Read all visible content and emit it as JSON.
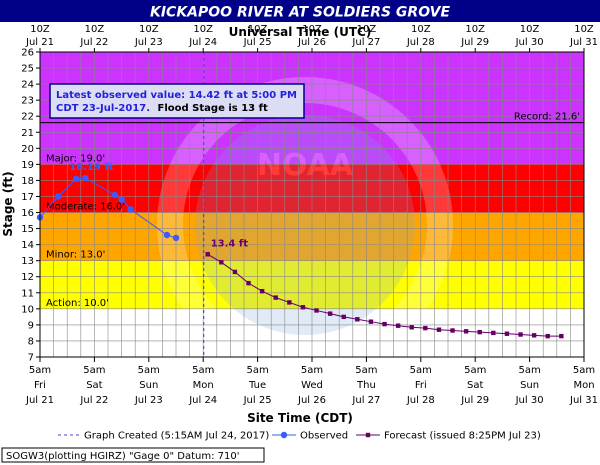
{
  "chart_data": {
    "type": "line",
    "title": "KICKAPOO RIVER AT SOLDIERS GROVE",
    "top_axis_label": "Universal Time (UTC)",
    "xlabel": "Site Time (CDT)",
    "ylabel": "Stage (ft)",
    "ylim": [
      7,
      26
    ],
    "y_ticks": [
      7,
      8,
      9,
      10,
      11,
      12,
      13,
      14,
      15,
      16,
      17,
      18,
      19,
      20,
      21,
      22,
      23,
      24,
      25,
      26
    ],
    "x_range_days": [
      "Jul 21 5am CDT",
      "Jul 31 5am CDT"
    ],
    "bottom_ticks": [
      {
        "l1": "5am",
        "l2": "Fri",
        "l3": "Jul 21"
      },
      {
        "l1": "5am",
        "l2": "Sat",
        "l3": "Jul 22"
      },
      {
        "l1": "5am",
        "l2": "Sun",
        "l3": "Jul 23"
      },
      {
        "l1": "5am",
        "l2": "Mon",
        "l3": "Jul 24"
      },
      {
        "l1": "5am",
        "l2": "Tue",
        "l3": "Jul 25"
      },
      {
        "l1": "5am",
        "l2": "Wed",
        "l3": "Jul 26"
      },
      {
        "l1": "5am",
        "l2": "Thu",
        "l3": "Jul 27"
      },
      {
        "l1": "5am",
        "l2": "Fri",
        "l3": "Jul 28"
      },
      {
        "l1": "5am",
        "l2": "Sat",
        "l3": "Jul 29"
      },
      {
        "l1": "5am",
        "l2": "Sun",
        "l3": "Jul 30"
      },
      {
        "l1": "5am",
        "l2": "Mon",
        "l3": "Jul 31"
      }
    ],
    "top_ticks": [
      {
        "l1": "10Z",
        "l2": "Jul 21"
      },
      {
        "l1": "10Z",
        "l2": "Jul 22"
      },
      {
        "l1": "10Z",
        "l2": "Jul 23"
      },
      {
        "l1": "10Z",
        "l2": "Jul 24"
      },
      {
        "l1": "10Z",
        "l2": "Jul 25"
      },
      {
        "l1": "10Z",
        "l2": "Jul 26"
      },
      {
        "l1": "10Z",
        "l2": "Jul 27"
      },
      {
        "l1": "10Z",
        "l2": "Jul 28"
      },
      {
        "l1": "10Z",
        "l2": "Jul 29"
      },
      {
        "l1": "10Z",
        "l2": "Jul 30"
      },
      {
        "l1": "10Z",
        "l2": "Jul 31"
      }
    ],
    "flood_bands": [
      {
        "label": "Action: 10.0'",
        "from": 10,
        "to": 13,
        "color": "#ffff00"
      },
      {
        "label": "Minor: 13.0'",
        "from": 13,
        "to": 16,
        "color": "#ffa500"
      },
      {
        "label": "Moderate: 16.0'",
        "from": 16,
        "to": 19,
        "color": "#ff0000"
      },
      {
        "label": "Major: 19.0'",
        "from": 19,
        "to": 26,
        "color": "#cc33ff"
      }
    ],
    "record": {
      "label": "Record: 21.6'",
      "value": 21.6
    },
    "graph_created_x": "Jul 24 5:15am CDT",
    "series": [
      {
        "name": "Observed",
        "color": "#3a5cff",
        "x": [
          "Jul 21 5am",
          "Jul 21 1pm",
          "Jul 21 9pm",
          "Jul 22 1am",
          "Jul 22 2pm",
          "Jul 22 5pm",
          "Jul 22 9pm",
          "Jul 23 1pm",
          "Jul 23 5pm"
        ],
        "y": [
          15.7,
          17.0,
          18.1,
          18.15,
          17.1,
          16.8,
          16.2,
          14.6,
          14.42
        ]
      },
      {
        "name": "Forecast (issued 8:25PM Jul 23)",
        "color": "#660066",
        "x": [
          "Jul 24 7am",
          "Jul 24 1pm",
          "Jul 24 7pm",
          "Jul 25 1am",
          "Jul 25 7am",
          "Jul 25 1pm",
          "Jul 25 7pm",
          "Jul 26 1am",
          "Jul 26 7am",
          "Jul 26 1pm",
          "Jul 26 7pm",
          "Jul 27 1am",
          "Jul 27 7am",
          "Jul 27 1pm",
          "Jul 27 7pm",
          "Jul 28 1am",
          "Jul 28 7am",
          "Jul 28 1pm",
          "Jul 28 7pm",
          "Jul 29 1am",
          "Jul 29 7am",
          "Jul 29 1pm",
          "Jul 29 7pm",
          "Jul 30 1am",
          "Jul 30 7am",
          "Jul 30 1pm",
          "Jul 30 7pm"
        ],
        "y": [
          13.4,
          12.9,
          12.3,
          11.6,
          11.1,
          10.7,
          10.4,
          10.1,
          9.9,
          9.7,
          9.5,
          9.35,
          9.2,
          9.05,
          8.95,
          8.85,
          8.8,
          8.7,
          8.65,
          8.6,
          8.55,
          8.5,
          8.45,
          8.4,
          8.35,
          8.3,
          8.3
        ]
      }
    ],
    "annotations": {
      "latest_line1": "Latest observed value: 14.42 ft at 5:00 PM",
      "latest_line2": "CDT 23-Jul-2017.",
      "flood_stage_text": "Flood Stage is 13 ft",
      "peak_label": "18.19 ft",
      "forecast_label": "13.4 ft"
    },
    "legend": [
      {
        "label": "Graph Created (5:15AM Jul 24, 2017)",
        "style": "dashed"
      },
      {
        "label": "Observed",
        "style": "circle"
      },
      {
        "label": "Forecast (issued 8:25PM Jul 23)",
        "style": "square"
      }
    ],
    "station_info": "SOGW3(plotting HGIRZ) \"Gage 0\" Datum: 710'",
    "watermark": "NATIONAL OCEANIC AND ATMOSPHERIC ADMINISTRATION · U.S. DEPARTMENT OF COMMERCE · NOAA"
  }
}
